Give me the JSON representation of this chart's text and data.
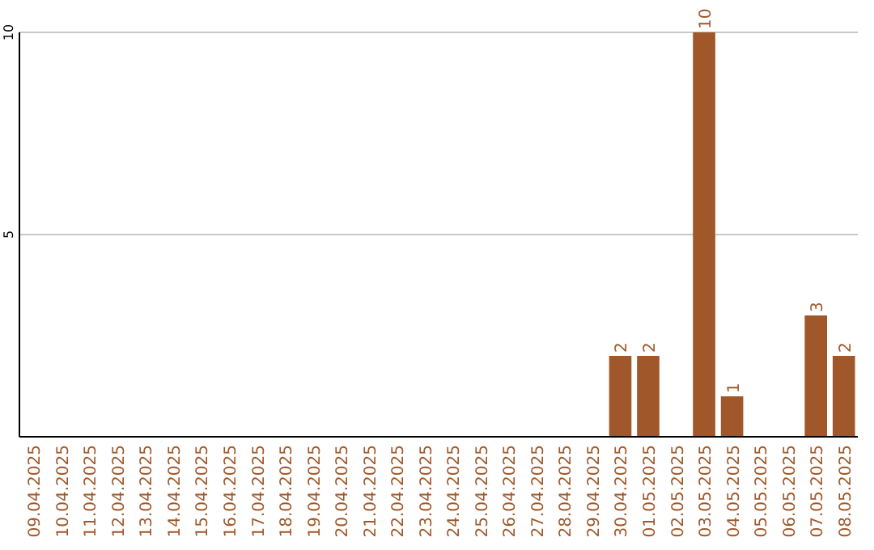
{
  "chart_data": {
    "type": "bar",
    "categories": [
      "09.04.2025",
      "10.04.2025",
      "11.04.2025",
      "12.04.2025",
      "13.04.2025",
      "14.04.2025",
      "15.04.2025",
      "16.04.2025",
      "17.04.2025",
      "18.04.2025",
      "19.04.2025",
      "20.04.2025",
      "21.04.2025",
      "22.04.2025",
      "23.04.2025",
      "24.04.2025",
      "25.04.2025",
      "26.04.2025",
      "27.04.2025",
      "28.04.2025",
      "29.04.2025",
      "30.04.2025",
      "01.05.2025",
      "02.05.2025",
      "03.05.2025",
      "04.05.2025",
      "05.05.2025",
      "06.05.2025",
      "07.05.2025",
      "08.05.2025"
    ],
    "values": [
      0,
      0,
      0,
      0,
      0,
      0,
      0,
      0,
      0,
      0,
      0,
      0,
      0,
      0,
      0,
      0,
      0,
      0,
      0,
      0,
      0,
      2,
      2,
      0,
      10,
      1,
      0,
      0,
      3,
      2
    ],
    "value_labels": [
      null,
      null,
      null,
      null,
      null,
      null,
      null,
      null,
      null,
      null,
      null,
      null,
      null,
      null,
      null,
      null,
      null,
      null,
      null,
      null,
      null,
      "2",
      "2",
      null,
      "10",
      "1",
      null,
      null,
      "3",
      "2"
    ],
    "color": "#a0582a",
    "ylim": [
      0,
      10
    ],
    "yticks": [
      5,
      10
    ],
    "grid": "y"
  }
}
